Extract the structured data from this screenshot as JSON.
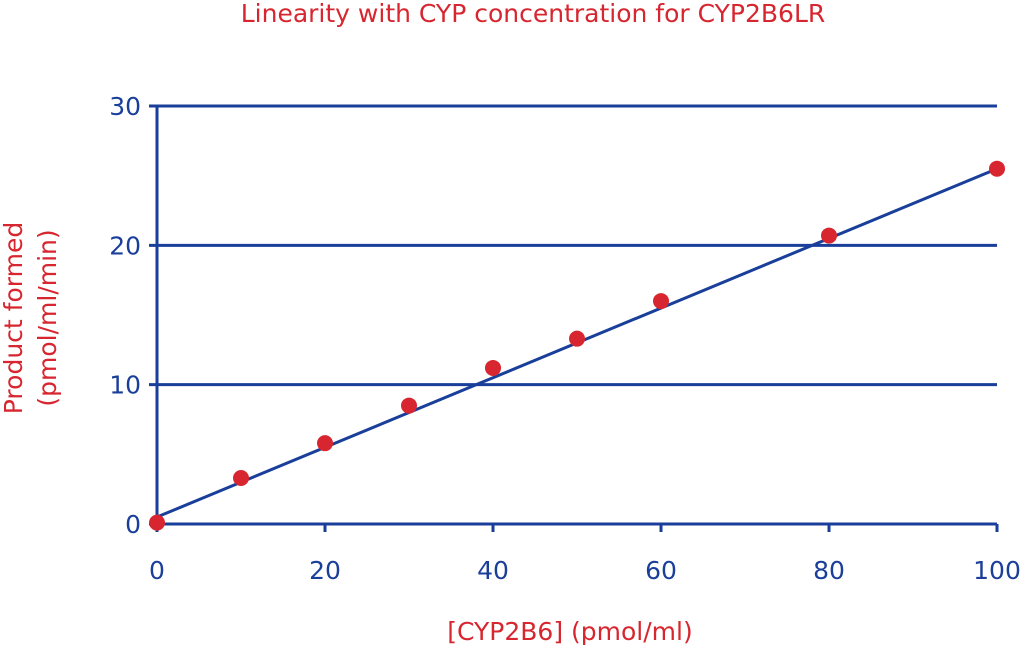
{
  "chart_data": {
    "type": "scatter",
    "title": "Linearity with CYP concentration for CYP2B6LR",
    "xlabel": "[CYP2B6] (pmol/ml)",
    "ylabel_lines": [
      "Product formed",
      "(pmol/ml/min)"
    ],
    "xlim": [
      0,
      100
    ],
    "ylim": [
      0,
      30
    ],
    "x_ticks": [
      0,
      20,
      40,
      60,
      80,
      100
    ],
    "y_ticks": [
      0,
      10,
      20,
      30
    ],
    "grid": "horizontal",
    "legend": "none",
    "points": [
      {
        "x": 0,
        "y": 0.1
      },
      {
        "x": 10,
        "y": 3.3
      },
      {
        "x": 20,
        "y": 5.8
      },
      {
        "x": 30,
        "y": 8.5
      },
      {
        "x": 40,
        "y": 11.2
      },
      {
        "x": 50,
        "y": 13.3
      },
      {
        "x": 60,
        "y": 16.0
      },
      {
        "x": 80,
        "y": 20.7
      },
      {
        "x": 100,
        "y": 25.5
      }
    ],
    "fit_line": {
      "x": [
        0,
        100
      ],
      "y": [
        0.5,
        25.5
      ]
    },
    "colors": {
      "axes": "#1a3f9a",
      "points": "#d7262f",
      "line": "#1a3f9a",
      "text": "#d7262f"
    }
  }
}
